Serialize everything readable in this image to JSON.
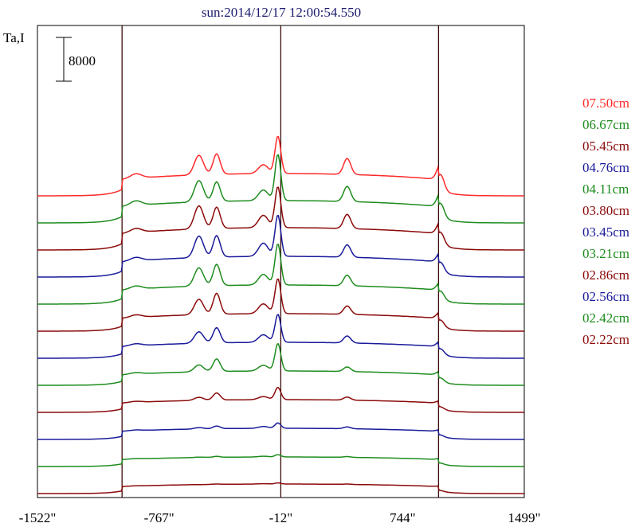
{
  "chart_data": {
    "type": "line",
    "title": "sun:2014/12/17 12:00:54.550",
    "ylabel": "Ta,I",
    "scale_bar_label": "8000",
    "scale_bar_value": 8000,
    "xlim": [
      -1522,
      1499
    ],
    "x_ticks": [
      {
        "value": -1522,
        "label": "-1522\""
      },
      {
        "value": -767,
        "label": "-767\""
      },
      {
        "value": -12,
        "label": "-12\""
      },
      {
        "value": 744,
        "label": "744\""
      },
      {
        "value": 1499,
        "label": "1499\""
      }
    ],
    "vertical_lines": [
      -997,
      -12,
      967
    ],
    "series": [
      {
        "name": "07.50cm",
        "color": "#ff2a2a",
        "offset": 11,
        "amp": 0.7,
        "peaks": {
          "limb": 0.25,
          "a": 1.1,
          "b": 1.15,
          "c": 2.1,
          "c2": 0.5,
          "d": 0.9,
          "e": 0.9
        }
      },
      {
        "name": "06.67cm",
        "color": "#1e8c1e",
        "offset": 10,
        "amp": 0.7,
        "peaks": {
          "limb": 0.25,
          "a": 1.2,
          "b": 1.1,
          "c": 2.6,
          "c2": 0.6,
          "d": 0.85,
          "e": 0.8
        }
      },
      {
        "name": "05.45cm",
        "color": "#8b0a0a",
        "offset": 9,
        "amp": 0.7,
        "peaks": {
          "limb": 0.22,
          "a": 1.3,
          "b": 1.2,
          "c": 2.3,
          "c2": 0.7,
          "d": 0.8,
          "e": 0.7
        }
      },
      {
        "name": "04.76cm",
        "color": "#1a1a9a",
        "offset": 8,
        "amp": 0.65,
        "peaks": {
          "limb": 0.2,
          "a": 1.3,
          "b": 1.3,
          "c": 2.5,
          "c2": 0.8,
          "d": 0.75,
          "e": 0.6
        }
      },
      {
        "name": "04.11cm",
        "color": "#1e8c1e",
        "offset": 7,
        "amp": 0.6,
        "peaks": {
          "limb": 0.2,
          "a": 1.2,
          "b": 1.4,
          "c": 2.7,
          "c2": 0.7,
          "d": 0.7,
          "e": 0.55
        }
      },
      {
        "name": "03.80cm",
        "color": "#8b0a0a",
        "offset": 6,
        "amp": 0.55,
        "peaks": {
          "limb": 0.18,
          "a": 1.1,
          "b": 1.5,
          "c": 2.5,
          "c2": 0.7,
          "d": 0.6,
          "e": 0.5
        }
      },
      {
        "name": "03.45cm",
        "color": "#1a1a9a",
        "offset": 5,
        "amp": 0.5,
        "peaks": {
          "limb": 0.15,
          "a": 0.9,
          "b": 1.2,
          "c": 2.2,
          "c2": 0.6,
          "d": 0.55,
          "e": 0.45
        }
      },
      {
        "name": "03.21cm",
        "color": "#1e8c1e",
        "offset": 4,
        "amp": 0.45,
        "peaks": {
          "limb": 0.12,
          "a": 0.6,
          "b": 1.1,
          "c": 2.4,
          "c2": 0.5,
          "d": 0.4,
          "e": 0.35
        }
      },
      {
        "name": "02.86cm",
        "color": "#8b0a0a",
        "offset": 3,
        "amp": 0.4,
        "peaks": {
          "limb": 0.1,
          "a": 0.3,
          "b": 0.7,
          "c": 1.2,
          "c2": 0.3,
          "d": 0.3,
          "e": 0.25
        }
      },
      {
        "name": "02.56cm",
        "color": "#1a1a9a",
        "offset": 2,
        "amp": 0.35,
        "peaks": {
          "limb": 0.08,
          "a": 0.15,
          "b": 0.3,
          "c": 0.6,
          "c2": 0.2,
          "d": 0.2,
          "e": 0.2
        }
      },
      {
        "name": "02.42cm",
        "color": "#1e8c1e",
        "offset": 1,
        "amp": 0.3,
        "peaks": {
          "limb": 0.05,
          "a": 0.05,
          "b": 0.12,
          "c": 0.3,
          "c2": 0.1,
          "d": 0.1,
          "e": 0.15
        }
      },
      {
        "name": "02.22cm",
        "color": "#8b0a0a",
        "offset": 0,
        "amp": 0.3,
        "peaks": {
          "limb": 0.03,
          "a": 0.0,
          "b": 0.05,
          "c": 0.15,
          "c2": 0.05,
          "d": 0.05,
          "e": 0.1
        }
      }
    ]
  }
}
